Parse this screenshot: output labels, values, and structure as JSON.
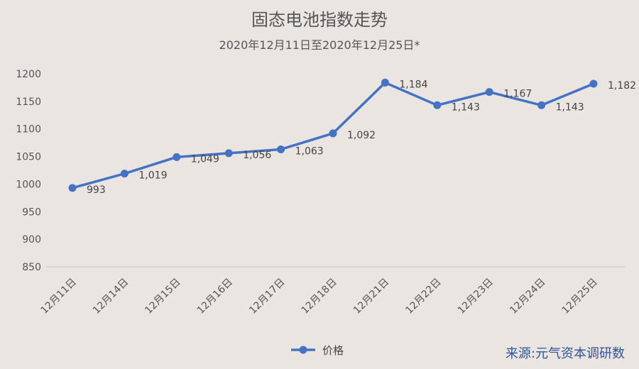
{
  "chart_data": {
    "type": "line",
    "title": "固态电池指数走势",
    "subtitle": "2020年12月11日至2020年12月25日*",
    "categories": [
      "12月11日",
      "12月14日",
      "12月15日",
      "12月16日",
      "12月17日",
      "12月18日",
      "12月21日",
      "12月22日",
      "12月23日",
      "12月24日",
      "12月25日"
    ],
    "series": [
      {
        "name": "价格",
        "values": [
          993,
          1019,
          1049,
          1056,
          1063,
          1092,
          1184,
          1143,
          1167,
          1143,
          1182
        ],
        "labels": [
          "993",
          "1,019",
          "1,049",
          "1,056",
          "1,063",
          "1,092",
          "1,184",
          "1,143",
          "1,167",
          "1,143",
          "1,182"
        ],
        "color": "#4472c4"
      }
    ],
    "ylim": [
      850,
      1200
    ],
    "yticks": [
      850,
      900,
      950,
      1000,
      1050,
      1100,
      1150,
      1200
    ],
    "grid": false,
    "legend": "bottom"
  },
  "source": "来源:元气资本调研数"
}
